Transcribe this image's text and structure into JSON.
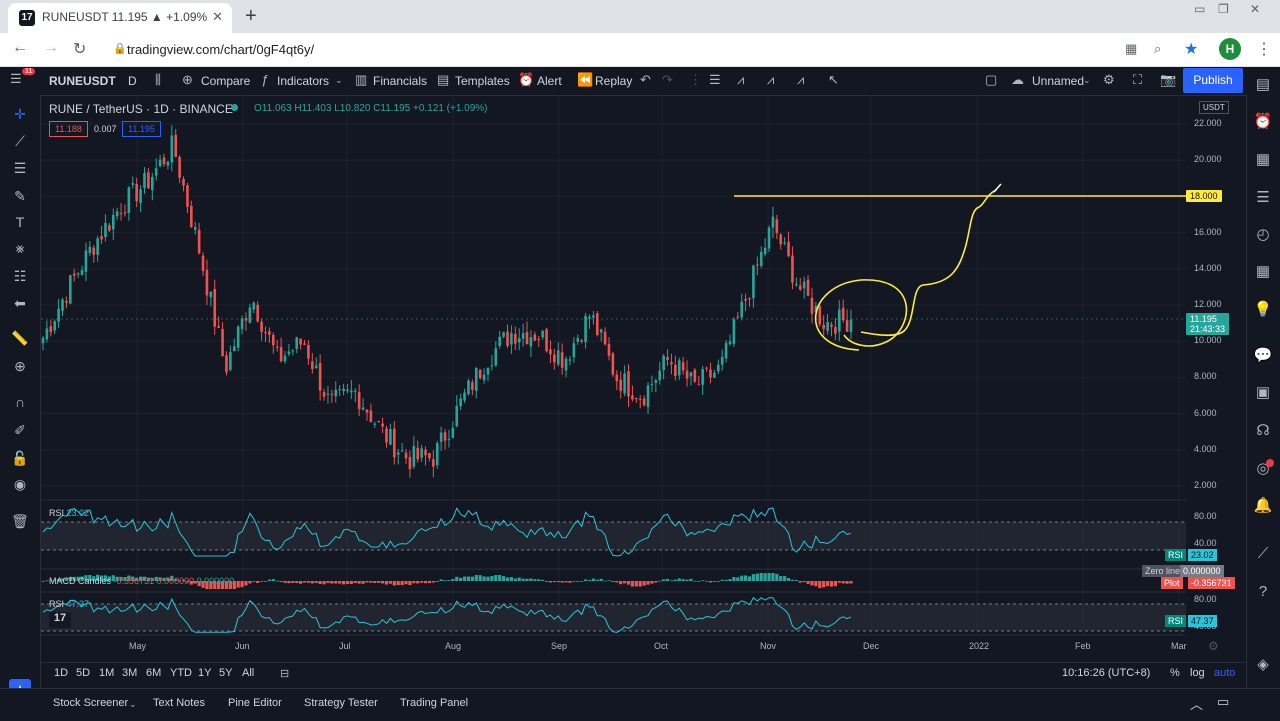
{
  "browser": {
    "tab_title": "RUNEUSDT 11.195 ▲ +1.09% Un",
    "tab_close": "✕",
    "new_tab": "+",
    "url": "tradingview.com/chart/0gF4qt6y/",
    "avatar": "H"
  },
  "toolbar": {
    "symbol": "RUNEUSDT",
    "interval": "D",
    "compare": "Compare",
    "indicators": "Indicators",
    "financials": "Financials",
    "templates": "Templates",
    "alert": "Alert",
    "replay": "Replay",
    "layout_name": "Unnamed",
    "publish": "Publish"
  },
  "legend": {
    "title": "RUNE / TetherUS · 1D · BINANCE",
    "ohlc": "O11.063 H11.403 L10.820 C11.195 +0.121 (+1.09%)",
    "bid": "11.188",
    "spread": "0.007",
    "ask": "11.195"
  },
  "price_axis": {
    "currency": "USDT",
    "labels": [
      "22.000",
      "20.000",
      "18.000",
      "16.000",
      "14.000",
      "12.000",
      "10.000",
      "8.000",
      "6.000",
      "4.000",
      "2.000"
    ],
    "level_line": "18.000",
    "last_price": "11.195",
    "countdown": "21:43:33"
  },
  "indicators": {
    "rsi1_name": "RSI",
    "rsi1_value": "23.02",
    "rsi1_levels": [
      "80.00",
      "40.00"
    ],
    "macd_name": "MACD Candles",
    "macd_values": "-0.356731  0.000000",
    "macd_zero": "0.000000",
    "zero_line_label": "Zero line",
    "zero_line_value": "0.000000",
    "plot_label": "Plot",
    "plot_value": "-0.356731",
    "rsi2_name": "RSI",
    "rsi2_value": "47.37",
    "rsi2_levels": [
      "80.00",
      "40.00"
    ]
  },
  "time_axis": [
    "May",
    "Jun",
    "Jul",
    "Aug",
    "Sep",
    "Oct",
    "Nov",
    "Dec",
    "2022",
    "Feb",
    "Mar"
  ],
  "timeframes": [
    "1D",
    "5D",
    "1M",
    "3M",
    "6M",
    "YTD",
    "1Y",
    "5Y",
    "All"
  ],
  "clock": "10:16:26 (UTC+8)",
  "axis_opts": [
    "%",
    "log",
    "auto"
  ],
  "bottom_tabs": [
    "Stock Screener",
    "Text Notes",
    "Pine Editor",
    "Strategy Tester",
    "Trading Panel"
  ],
  "colors": {
    "up": "#26a69a",
    "down": "#ef5350",
    "annotation": "#ffeb3b",
    "rsi": "#26c6da",
    "accent": "#2962ff"
  },
  "chart_data": {
    "type": "candlestick",
    "symbol": "RUNE / TetherUS",
    "interval": "1D",
    "exchange": "BINANCE",
    "ylim": [
      1.5,
      23
    ],
    "x_ticks": [
      "May",
      "Jun",
      "Jul",
      "Aug",
      "Sep",
      "Oct",
      "Nov",
      "Dec",
      "2022",
      "Feb",
      "Mar"
    ],
    "close_path": [
      [
        "Apr",
        10.2
      ],
      [
        "Apr",
        13.0
      ],
      [
        "Apr",
        15.5
      ],
      [
        "May",
        17.5
      ],
      [
        "May",
        18.8
      ],
      [
        "May",
        20.8
      ],
      [
        "May",
        15.0
      ],
      [
        "Jun",
        8.5
      ],
      [
        "Jun",
        12.5
      ],
      [
        "Jun",
        9.0
      ],
      [
        "Jun",
        10.0
      ],
      [
        "Jul",
        6.5
      ],
      [
        "Jul",
        7.2
      ],
      [
        "Jul",
        5.0
      ],
      [
        "Jul",
        3.5
      ],
      [
        "Aug",
        3.6
      ],
      [
        "Aug",
        6.5
      ],
      [
        "Aug",
        9.0
      ],
      [
        "Aug",
        10.5
      ],
      [
        "Sep",
        10.4
      ],
      [
        "Sep",
        9.0
      ],
      [
        "Sep",
        11.5
      ],
      [
        "Sep",
        8.0
      ],
      [
        "Oct",
        7.0
      ],
      [
        "Oct",
        9.0
      ],
      [
        "Oct",
        7.5
      ],
      [
        "Oct",
        8.5
      ],
      [
        "Nov",
        12.5
      ],
      [
        "Nov",
        16.5
      ],
      [
        "Nov",
        13.0
      ],
      [
        "Nov",
        11.0
      ],
      [
        "Nov",
        11.2
      ]
    ],
    "horizontal_level": 18.0,
    "last_close": 11.195
  }
}
